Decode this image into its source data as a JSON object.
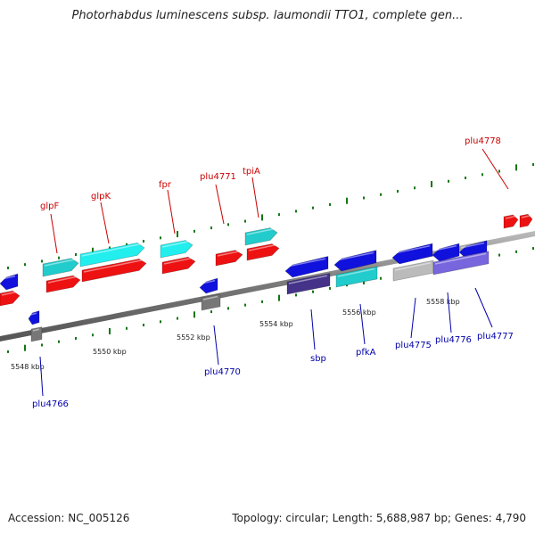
{
  "header": {
    "title": "Photorhabdus luminescens subsp. laumondii TTO1, complete gen..."
  },
  "footer": {
    "accession": "Accession: NC_005126",
    "topology": "Topology: circular; Length: 5,688,987 bp; Genes: 4,790"
  },
  "map": {
    "kbp_labels": [
      "5548 kbp",
      "5550 kbp",
      "5552 kbp",
      "5554 kbp",
      "5556 kbp",
      "5558 kbp"
    ],
    "forward_genes": [
      "glpF",
      "glpK",
      "fpr",
      "plu4771",
      "tpiA",
      "plu4778"
    ],
    "reverse_genes": [
      "plu4766",
      "plu4770",
      "sbp",
      "pfkA",
      "plu4775",
      "plu4776",
      "plu4777"
    ]
  },
  "colors": {
    "forward_label": "#cc0000",
    "reverse_label": "#0000aa",
    "forward_gene": "#ee1111",
    "reverse_gene": "#1111dd",
    "cds_cyan": "#22cccc",
    "cds_purple": "#7766dd",
    "cds_grey": "#999999",
    "tick_green": "#117711",
    "backbone": "#888888"
  }
}
